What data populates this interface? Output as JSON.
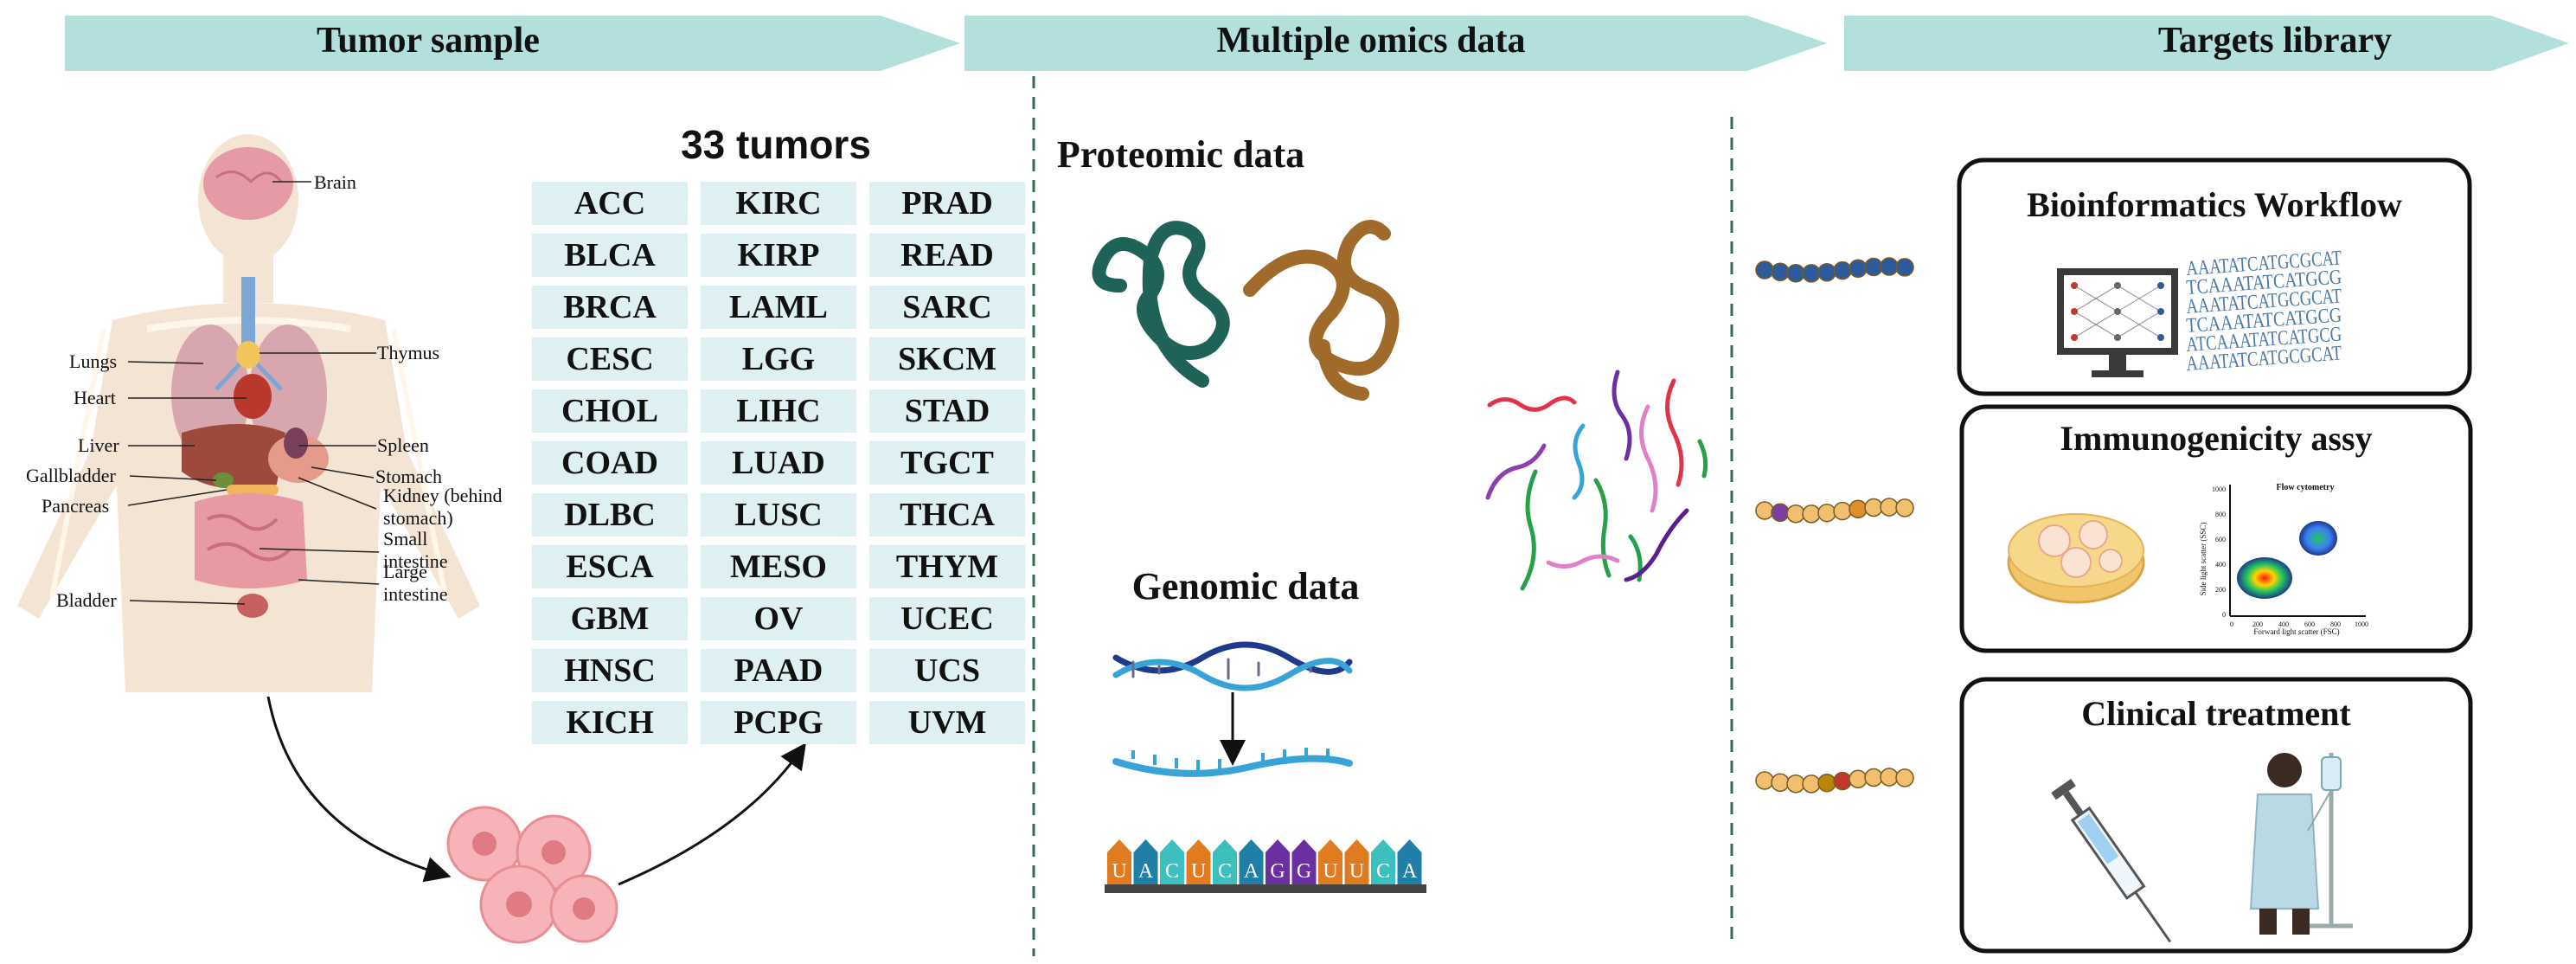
{
  "banners": [
    {
      "label": "Tumor sample"
    },
    {
      "label": "Multiple omics data"
    },
    {
      "label": "Targets library"
    }
  ],
  "organs": {
    "brain": "Brain",
    "thymus": "Thymus",
    "lungs": "Lungs",
    "heart": "Heart",
    "liver": "Liver",
    "spleen": "Spleen",
    "gallbladder": "Gallbladder",
    "stomach": "Stomach",
    "kidney_line1": "Kidney (behind",
    "kidney_line2": "stomach)",
    "pancreas": "Pancreas",
    "small_line1": "Small",
    "small_line2": "intestine",
    "large_line1": "Large",
    "large_line2": "intestine",
    "bladder": "Bladder"
  },
  "tumors_title": "33 tumors",
  "tumors": [
    [
      "ACC",
      "BLCA",
      "BRCA",
      "CESC",
      "CHOL",
      "COAD",
      "DLBC",
      "ESCA",
      "GBM",
      "HNSC",
      "KICH"
    ],
    [
      "KIRC",
      "KIRP",
      "LAML",
      "LGG",
      "LIHC",
      "LUAD",
      "LUSC",
      "MESO",
      "OV",
      "PAAD",
      "PCPG"
    ],
    [
      "PRAD",
      "READ",
      "SARC",
      "SKCM",
      "STAD",
      "TGCT",
      "THCA",
      "THYM",
      "UCEC",
      "UCS",
      "UVM"
    ]
  ],
  "omics": {
    "proteomic": "Proteomic data",
    "genomic": "Genomic data",
    "rna_letters": [
      "U",
      "A",
      "C",
      "U",
      "C",
      "A",
      "G",
      "G",
      "U",
      "U",
      "C",
      "A"
    ]
  },
  "targets": {
    "bioinformatics": "Bioinformatics Workflow",
    "seq_lines": [
      "AAATATCATGCGCAT",
      "TCAAATATCATGCG",
      "AAATATCATGCGCAT",
      "TCAAATATCATGCG",
      "ATCAAATATCATGCG",
      "AAATATCATGCGCAT"
    ],
    "immunogenicity": "Immunogenicity assy",
    "flow_title": "Flow cytometry",
    "flow_xlabel": "Forward light scatter (FSC)",
    "flow_ylabel": "Side light scatter (SSC)",
    "flow_ticks": [
      "0",
      "200",
      "400",
      "600",
      "800",
      "1000"
    ],
    "clinical": "Clinical treatment"
  },
  "colors": {
    "banner": "#b3e0dc",
    "tumor_cell": "#dff0f3",
    "divider": "#2f6b4f",
    "peptide_blue": "#2d5a9a",
    "peptide_gold": "#f0c070"
  }
}
